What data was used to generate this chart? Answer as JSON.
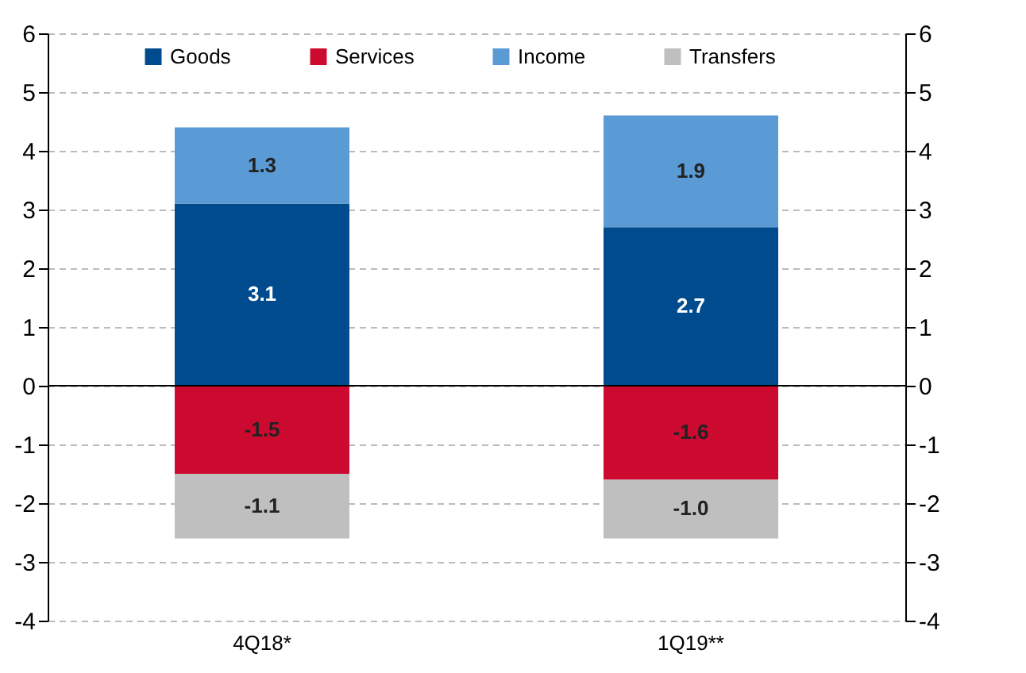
{
  "chart_data": {
    "type": "bar",
    "stacked": true,
    "categories": [
      "4Q18*",
      "1Q19**"
    ],
    "series": [
      {
        "name": "Goods",
        "color": "#004b8d",
        "values": [
          3.1,
          2.7
        ],
        "value_labels": [
          "3.1",
          "2.7"
        ]
      },
      {
        "name": "Services",
        "color": "#cc0a30",
        "values": [
          -1.5,
          -1.6
        ],
        "value_labels": [
          "-1.5",
          "-1.6"
        ]
      },
      {
        "name": "Income",
        "color": "#5b9bd5",
        "values": [
          1.3,
          1.9
        ],
        "value_labels": [
          "1.3",
          "1.9"
        ]
      },
      {
        "name": "Transfers",
        "color": "#bfbfbf",
        "values": [
          -1.1,
          -1.0
        ],
        "value_labels": [
          "-1.1",
          "-1.0"
        ]
      }
    ],
    "ylim": [
      -4,
      6
    ],
    "yticks": [
      -4,
      -3,
      -2,
      -1,
      0,
      1,
      2,
      3,
      4,
      5,
      6
    ],
    "y2lim": [
      -4,
      6
    ],
    "y2ticks": [
      -4,
      -3,
      -2,
      -1,
      0,
      1,
      2,
      3,
      4,
      5,
      6
    ],
    "grid": "y",
    "legend": "top",
    "data_labels": true
  }
}
